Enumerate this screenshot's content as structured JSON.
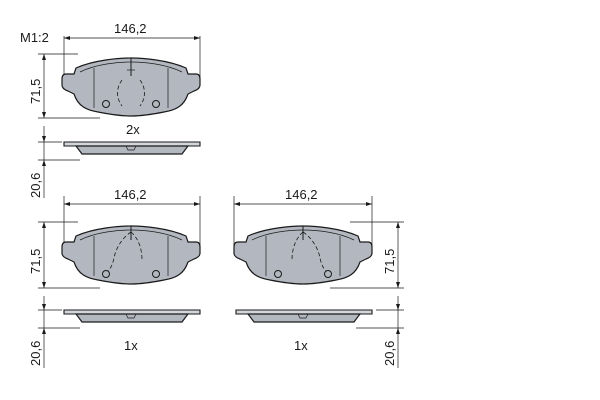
{
  "scale_label": "M1:2",
  "views": [
    {
      "id": "top-left",
      "width_label": "146,2",
      "height_label": "71,5",
      "thickness_label": "20,6",
      "quantity_label": "2x",
      "wire_side": "center"
    },
    {
      "id": "bottom-left",
      "width_label": "146,2",
      "height_label": "71,5",
      "thickness_label": "20,6",
      "quantity_label": "1x",
      "wire_side": "left"
    },
    {
      "id": "bottom-right",
      "width_label": "146,2",
      "height_label": "71,5",
      "thickness_label": "20,6",
      "quantity_label": "1x",
      "wire_side": "right"
    }
  ],
  "colors": {
    "pad": "#b3b8c0",
    "plate": "#d2d6db",
    "line": "#1a1a1a"
  }
}
